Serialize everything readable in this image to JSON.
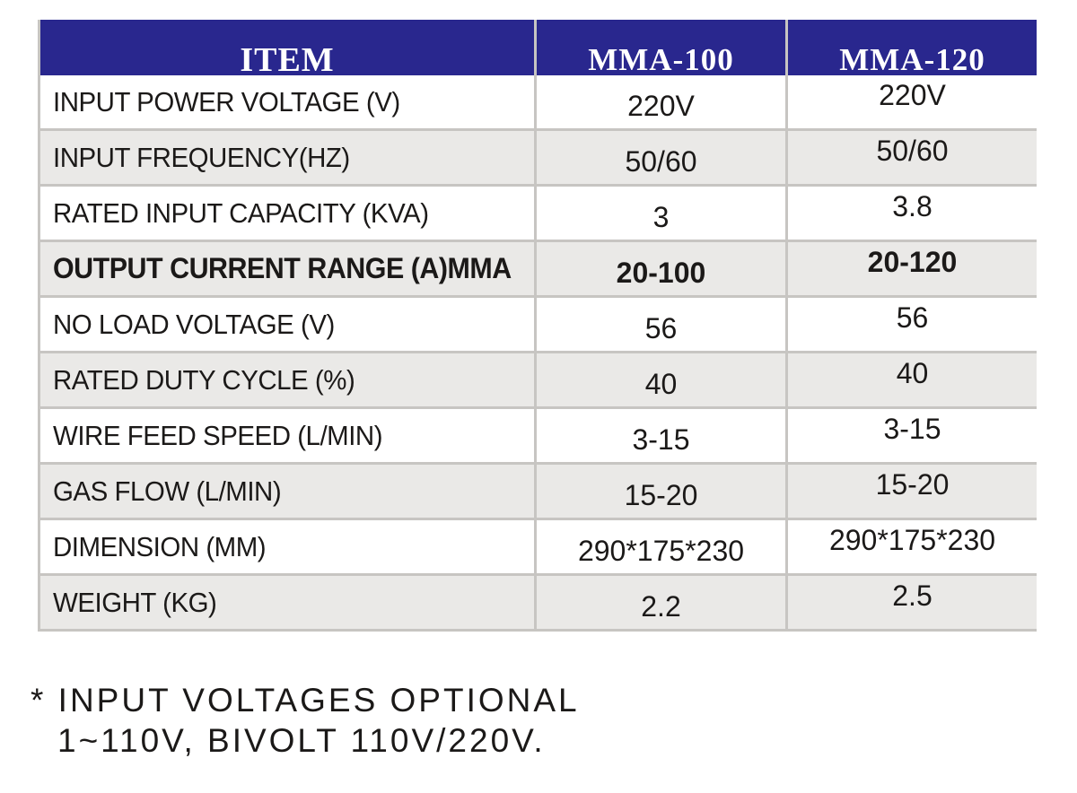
{
  "table": {
    "header": {
      "item": "ITEM",
      "model_a": "MMA-100",
      "model_b": "MMA-120"
    },
    "rows": [
      {
        "label": "INPUT POWER VOLTAGE (V)",
        "mma100": "220V",
        "mma120": "220V",
        "bold": false
      },
      {
        "label": "INPUT FREQUENCY(HZ)",
        "mma100": "50/60",
        "mma120": "50/60",
        "bold": false
      },
      {
        "label": "RATED INPUT CAPACITY (KVA)",
        "mma100": "3",
        "mma120": "3.8",
        "bold": false
      },
      {
        "label": "OUTPUT CURRENT RANGE (A)MMA",
        "mma100": "20-100",
        "mma120": "20-120",
        "bold": true
      },
      {
        "label": "NO LOAD VOLTAGE (V)",
        "mma100": "56",
        "mma120": "56",
        "bold": false
      },
      {
        "label": "RATED DUTY CYCLE (%)",
        "mma100": "40",
        "mma120": "40",
        "bold": false
      },
      {
        "label": "WIRE FEED SPEED (L/MIN)",
        "mma100": "3-15",
        "mma120": "3-15",
        "bold": false
      },
      {
        "label": "GAS FLOW (L/MIN)",
        "mma100": "15-20",
        "mma120": "15-20",
        "bold": false
      },
      {
        "label": "DIMENSION (MM)",
        "mma100": "290*175*230",
        "mma120": "290*175*230",
        "bold": false
      },
      {
        "label": "WEIGHT (KG)",
        "mma100": "2.2",
        "mma120": "2.5",
        "bold": false
      }
    ],
    "colors": {
      "header_bg": "#29278e",
      "header_text": "#ffffff",
      "row_bg": "#ffffff",
      "row_alt_bg": "#eae9e7",
      "border": "#c7c5c2",
      "text": "#1b1918"
    }
  },
  "footnote": {
    "line1": "* INPUT VOLTAGES OPTIONAL",
    "line2": "1~110V, BIVOLT 110V/220V."
  }
}
